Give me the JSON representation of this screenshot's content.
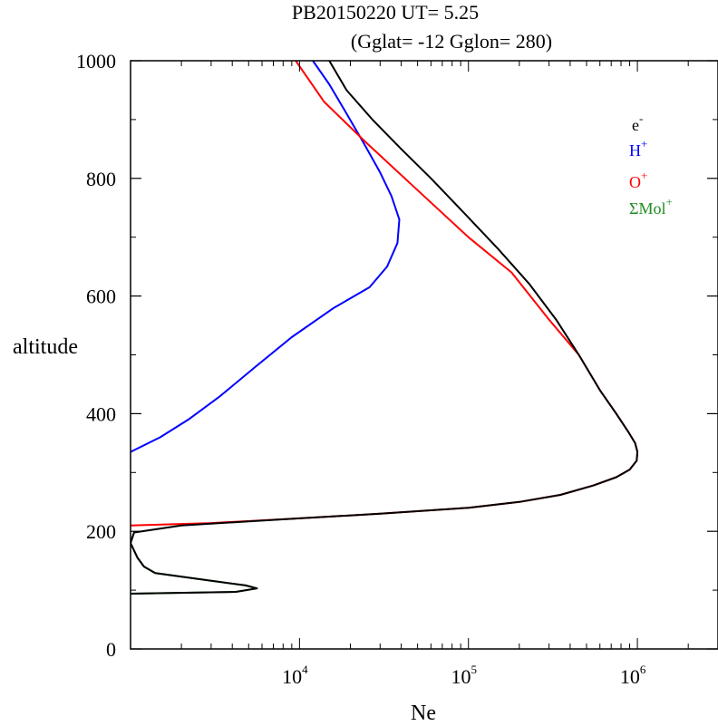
{
  "chart_data": {
    "type": "line",
    "title": "PB20150220   UT=  5.25",
    "subtitle": "(Gglat= -12   Gglon=  280)",
    "xlabel": "Ne",
    "ylabel": "altitude",
    "xscale": "log",
    "xlim": [
      1000,
      3000000
    ],
    "ylim": [
      0,
      1000
    ],
    "x_ticks": [
      {
        "base": "10",
        "exp": "4",
        "value": 10000
      },
      {
        "base": "10",
        "exp": "5",
        "value": 100000
      },
      {
        "base": "10",
        "exp": "6",
        "value": 1000000
      }
    ],
    "y_ticks": [
      "0",
      "200",
      "400",
      "600",
      "800",
      "1000"
    ],
    "y_tick_values": [
      0,
      200,
      400,
      600,
      800,
      1000
    ],
    "legend_position": "top-right",
    "series": [
      {
        "legend": {
          "base": "e",
          "sup": "-"
        },
        "color": "#000000",
        "points": [
          [
            1000,
            94
          ],
          [
            4200,
            97
          ],
          [
            5600,
            103
          ],
          [
            4800,
            108
          ],
          [
            1400,
            129
          ],
          [
            1200,
            140
          ],
          [
            1100,
            155
          ],
          [
            1000,
            180
          ],
          [
            1050,
            198
          ],
          [
            2000,
            210
          ],
          [
            10000,
            222
          ],
          [
            30000,
            230
          ],
          [
            100000,
            240
          ],
          [
            200000,
            250
          ],
          [
            350000,
            262
          ],
          [
            550000,
            278
          ],
          [
            750000,
            292
          ],
          [
            900000,
            305
          ],
          [
            990000,
            320
          ],
          [
            1000000,
            335
          ],
          [
            970000,
            350
          ],
          [
            880000,
            370
          ],
          [
            750000,
            400
          ],
          [
            600000,
            440
          ],
          [
            450000,
            500
          ],
          [
            330000,
            560
          ],
          [
            230000,
            620
          ],
          [
            150000,
            680
          ],
          [
            95000,
            740
          ],
          [
            60000,
            800
          ],
          [
            40000,
            850
          ],
          [
            27000,
            900
          ],
          [
            19000,
            950
          ],
          [
            15000,
            1000
          ]
        ]
      },
      {
        "legend": {
          "base": "H",
          "sup": "+"
        },
        "color": "#0000ff",
        "points": [
          [
            1000,
            335
          ],
          [
            1500,
            360
          ],
          [
            2200,
            390
          ],
          [
            3400,
            430
          ],
          [
            5500,
            480
          ],
          [
            9000,
            530
          ],
          [
            16000,
            580
          ],
          [
            26000,
            615
          ],
          [
            33000,
            650
          ],
          [
            38000,
            690
          ],
          [
            39000,
            730
          ],
          [
            35000,
            770
          ],
          [
            30000,
            810
          ],
          [
            24000,
            860
          ],
          [
            19000,
            910
          ],
          [
            15000,
            960
          ],
          [
            12000,
            1000
          ]
        ]
      },
      {
        "legend": {
          "base": "O",
          "sup": "+"
        },
        "color": "#ff0000",
        "points": [
          [
            1000,
            210
          ],
          [
            3000,
            214
          ],
          [
            10000,
            222
          ],
          [
            30000,
            230
          ],
          [
            100000,
            240
          ],
          [
            200000,
            250
          ],
          [
            350000,
            262
          ],
          [
            550000,
            278
          ],
          [
            750000,
            292
          ],
          [
            900000,
            305
          ],
          [
            990000,
            320
          ],
          [
            1000000,
            335
          ],
          [
            970000,
            350
          ],
          [
            880000,
            370
          ],
          [
            750000,
            400
          ],
          [
            600000,
            440
          ],
          [
            450000,
            500
          ],
          [
            300000,
            560
          ],
          [
            180000,
            640
          ],
          [
            100000,
            700
          ],
          [
            50000,
            780
          ],
          [
            25000,
            860
          ],
          [
            14000,
            930
          ],
          [
            9500,
            1000
          ]
        ]
      },
      {
        "legend": {
          "base": "ΣMol",
          "sup": "+"
        },
        "color": "#228b22",
        "points": [
          [
            1000,
            94
          ],
          [
            4200,
            97
          ],
          [
            5600,
            103
          ],
          [
            4800,
            108
          ],
          [
            1400,
            129
          ],
          [
            1200,
            140
          ],
          [
            1100,
            155
          ],
          [
            1000,
            180
          ],
          [
            1050,
            198
          ]
        ]
      }
    ]
  }
}
